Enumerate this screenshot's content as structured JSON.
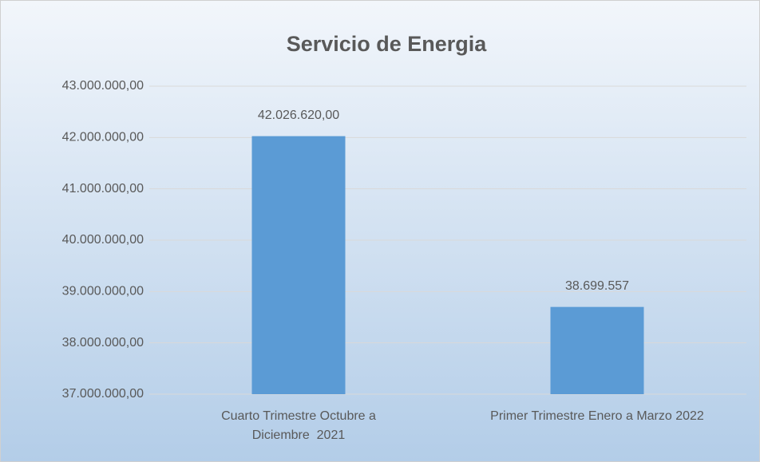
{
  "chart_data": {
    "type": "bar",
    "title": "Servicio de Energia",
    "categories": [
      "Cuarto Trimestre Octubre a\nDiciembre  2021",
      "Primer Trimestre Enero a Marzo 2022"
    ],
    "values": [
      42026620,
      38699557
    ],
    "value_labels": [
      "42.026.620,00",
      "38.699.557"
    ],
    "color": "#5b9bd5",
    "ylim": [
      37000000,
      43000000
    ],
    "yticks": [
      {
        "value": 37000000,
        "label": "37.000.000,00"
      },
      {
        "value": 38000000,
        "label": "38.000.000,00"
      },
      {
        "value": 39000000,
        "label": "39.000.000,00"
      },
      {
        "value": 40000000,
        "label": "40.000.000,00"
      },
      {
        "value": 41000000,
        "label": "41.000.000,00"
      },
      {
        "value": 42000000,
        "label": "42.000.000,00"
      },
      {
        "value": 43000000,
        "label": "43.000.000,00"
      }
    ],
    "grid": true
  }
}
